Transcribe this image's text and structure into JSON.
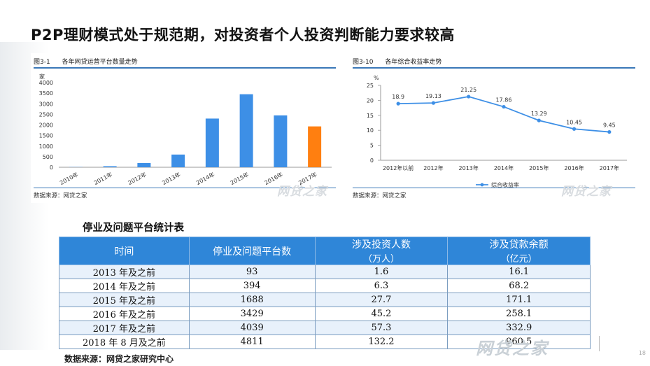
{
  "slide": {
    "title": "P2P理财模式处于规范期，对投资者个人投资判断能力要求较高",
    "page_mark": "18"
  },
  "chart_data": [
    {
      "type": "bar",
      "caption_num": "图3-1",
      "title": "各年网贷运营平台数量走势",
      "ylabel": "家",
      "categories": [
        "2010年",
        "2011年",
        "2012年",
        "2013年",
        "2014年",
        "2015年",
        "2016年",
        "2017年"
      ],
      "values": [
        10,
        50,
        200,
        600,
        2300,
        3450,
        2450,
        1930
      ],
      "highlight_index": 7,
      "colors": {
        "bar": "#3d8fe6",
        "highlight": "#ff7f10"
      },
      "ylim": [
        0,
        4000
      ],
      "yticks": [
        0,
        500,
        1000,
        1500,
        2000,
        2500,
        3000,
        3500,
        4000
      ],
      "grid": false,
      "source": "数据来源：网贷之家",
      "watermark": "网贷之家"
    },
    {
      "type": "line",
      "caption_num": "图3-10",
      "title": "各年综合收益率走势",
      "ylabel": "%",
      "categories": [
        "2012年以前",
        "2012年",
        "2013年",
        "2014年",
        "2015年",
        "2016年",
        "2017年"
      ],
      "series": [
        {
          "name": "综合收益率",
          "values": [
            18.9,
            19.13,
            21.25,
            17.86,
            13.29,
            10.45,
            9.45
          ],
          "color": "#3d8fe6"
        }
      ],
      "data_labels": [
        "18.9",
        "19.13",
        "21.25",
        "17.86",
        "13.29",
        "10.45",
        "9.45"
      ],
      "ylim": [
        0,
        25
      ],
      "yticks": [
        0,
        5,
        10,
        15,
        20,
        25
      ],
      "grid": false,
      "legend_position": "bottom",
      "source": "数据来源：网贷之家",
      "watermark": "网贷之家"
    }
  ],
  "table": {
    "title": "停业及问题平台统计表",
    "headers": [
      {
        "main": "时间",
        "sub": ""
      },
      {
        "main": "停业及问题平台数",
        "sub": ""
      },
      {
        "main": "涉及投资人数",
        "sub": "（万人）"
      },
      {
        "main": "涉及贷款余额",
        "sub": "（亿元）"
      }
    ],
    "rows": [
      [
        "2013 年及之前",
        "93",
        "1.6",
        "16.1"
      ],
      [
        "2014 年及之前",
        "394",
        "6.3",
        "68.2"
      ],
      [
        "2015 年及之前",
        "1688",
        "27.7",
        "171.1"
      ],
      [
        "2016 年及之前",
        "3429",
        "45.2",
        "258.1"
      ],
      [
        "2017 年及之前",
        "4039",
        "57.3",
        "332.9"
      ],
      [
        "2018 年 8 月及之前",
        "4811",
        "132.2",
        "960.5"
      ]
    ],
    "source": "数据来源：网贷之家研究中心",
    "watermark": "网贷之家"
  }
}
